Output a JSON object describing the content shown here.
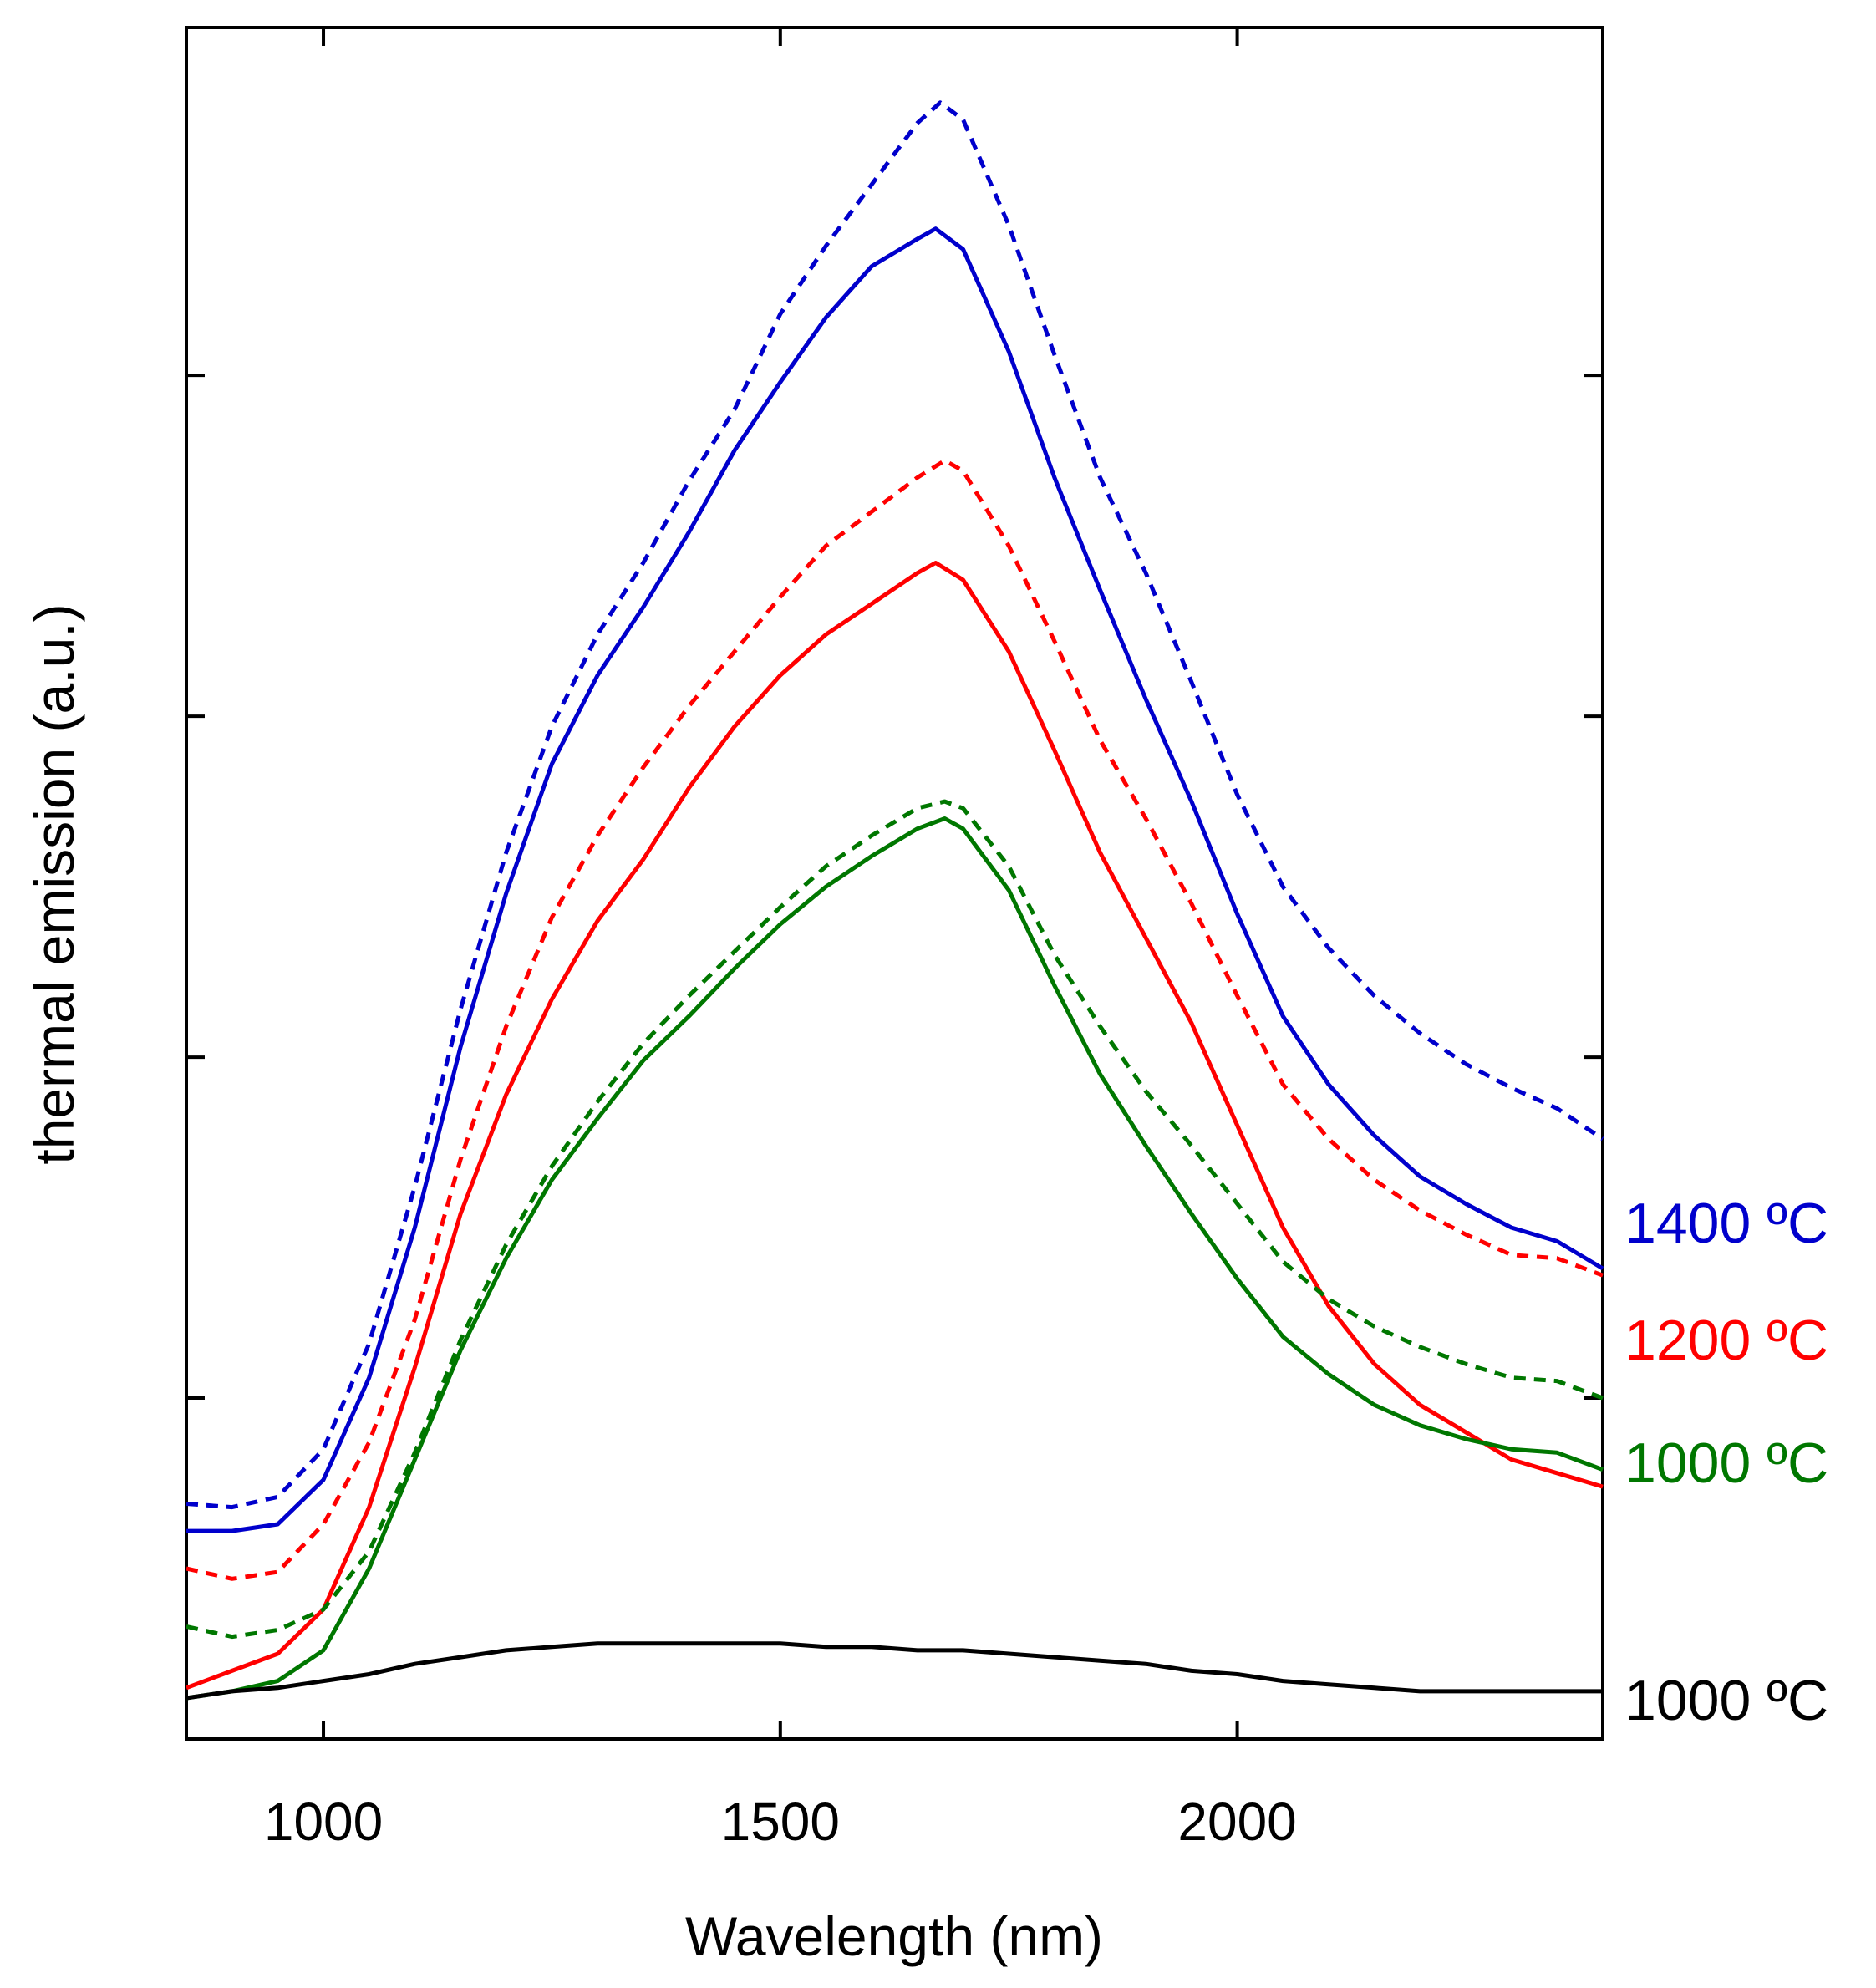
{
  "chart_data": {
    "type": "line",
    "title": "",
    "xlabel": "Wavelength (nm)",
    "ylabel": "thermal emission (a.u.)",
    "xlim": [
      850,
      2400
    ],
    "ylim": [
      -0.12,
      4.9
    ],
    "xticks": [
      1000,
      1500,
      2000
    ],
    "xtick_labels": [
      "1000",
      "1500",
      "2000"
    ],
    "yticks": [
      0.88,
      1.88,
      2.88,
      3.88
    ],
    "y_tick_labels_shown": false,
    "grid": false,
    "legend": "right-side labels",
    "series": [
      {
        "name": "1400 ºC dotted",
        "label": "",
        "color": "#0000cc",
        "dash": true,
        "x": [
          850,
          900,
          950,
          1000,
          1050,
          1100,
          1150,
          1200,
          1250,
          1300,
          1350,
          1400,
          1450,
          1500,
          1550,
          1600,
          1650,
          1675,
          1700,
          1750,
          1800,
          1850,
          1900,
          1950,
          2000,
          2050,
          2100,
          2150,
          2200,
          2250,
          2300,
          2350,
          2400
        ],
        "y": [
          0.57,
          0.56,
          0.59,
          0.73,
          1.04,
          1.5,
          2.02,
          2.48,
          2.85,
          3.12,
          3.33,
          3.57,
          3.78,
          4.06,
          4.26,
          4.44,
          4.62,
          4.68,
          4.63,
          4.32,
          3.94,
          3.58,
          3.3,
          2.98,
          2.65,
          2.38,
          2.2,
          2.06,
          1.95,
          1.86,
          1.79,
          1.73,
          1.64
        ]
      },
      {
        "name": "1400 ºC solid",
        "label": "1400 ºC",
        "color": "#0000cc",
        "dash": false,
        "x": [
          850,
          900,
          950,
          1000,
          1050,
          1100,
          1150,
          1200,
          1250,
          1300,
          1350,
          1400,
          1450,
          1500,
          1550,
          1600,
          1650,
          1670,
          1700,
          1750,
          1800,
          1850,
          1900,
          1950,
          2000,
          2050,
          2100,
          2150,
          2200,
          2250,
          2300,
          2350,
          2400
        ],
        "y": [
          0.49,
          0.49,
          0.51,
          0.64,
          0.94,
          1.38,
          1.91,
          2.36,
          2.74,
          3.0,
          3.2,
          3.42,
          3.66,
          3.86,
          4.05,
          4.2,
          4.28,
          4.31,
          4.25,
          3.95,
          3.58,
          3.25,
          2.93,
          2.63,
          2.3,
          2.0,
          1.8,
          1.65,
          1.53,
          1.45,
          1.38,
          1.34,
          1.26
        ]
      },
      {
        "name": "1200 ºC dotted",
        "label": "",
        "color": "#ff0000",
        "dash": true,
        "x": [
          850,
          900,
          950,
          1000,
          1050,
          1100,
          1150,
          1200,
          1250,
          1300,
          1350,
          1400,
          1450,
          1500,
          1550,
          1600,
          1650,
          1680,
          1700,
          1750,
          1800,
          1850,
          1900,
          1950,
          2000,
          2050,
          2100,
          2150,
          2200,
          2250,
          2300,
          2350,
          2400
        ],
        "y": [
          0.38,
          0.35,
          0.37,
          0.51,
          0.75,
          1.11,
          1.58,
          1.97,
          2.29,
          2.53,
          2.73,
          2.91,
          3.07,
          3.23,
          3.38,
          3.48,
          3.58,
          3.63,
          3.6,
          3.38,
          3.1,
          2.81,
          2.58,
          2.33,
          2.06,
          1.8,
          1.64,
          1.52,
          1.43,
          1.36,
          1.3,
          1.29,
          1.24
        ]
      },
      {
        "name": "1200 ºC solid",
        "label": "1200 ºC",
        "color": "#ff0000",
        "dash": false,
        "x": [
          850,
          900,
          950,
          1000,
          1050,
          1100,
          1150,
          1200,
          1250,
          1300,
          1350,
          1400,
          1450,
          1500,
          1550,
          1600,
          1650,
          1670,
          1700,
          1750,
          1800,
          1850,
          1900,
          1950,
          2000,
          2050,
          2100,
          2150,
          2200,
          2250,
          2300,
          2350,
          2400
        ],
        "y": [
          0.03,
          0.08,
          0.13,
          0.26,
          0.56,
          0.97,
          1.42,
          1.77,
          2.05,
          2.28,
          2.46,
          2.67,
          2.85,
          3.0,
          3.12,
          3.21,
          3.3,
          3.33,
          3.28,
          3.07,
          2.78,
          2.48,
          2.23,
          1.98,
          1.68,
          1.38,
          1.15,
          0.98,
          0.86,
          0.78,
          0.7,
          0.66,
          0.62
        ]
      },
      {
        "name": "1000 ºC dotted",
        "label": "",
        "color": "#007700",
        "dash": true,
        "x": [
          850,
          900,
          950,
          1000,
          1050,
          1100,
          1150,
          1200,
          1250,
          1300,
          1350,
          1400,
          1450,
          1500,
          1550,
          1600,
          1650,
          1680,
          1700,
          1750,
          1800,
          1850,
          1900,
          1950,
          2000,
          2050,
          2100,
          2150,
          2200,
          2250,
          2300,
          2350,
          2400
        ],
        "y": [
          0.21,
          0.18,
          0.2,
          0.26,
          0.43,
          0.72,
          1.05,
          1.33,
          1.56,
          1.75,
          1.92,
          2.06,
          2.19,
          2.32,
          2.44,
          2.53,
          2.61,
          2.63,
          2.61,
          2.44,
          2.18,
          1.97,
          1.78,
          1.62,
          1.45,
          1.28,
          1.17,
          1.09,
          1.03,
          0.98,
          0.94,
          0.93,
          0.88
        ]
      },
      {
        "name": "1000 ºC solid",
        "label": "1000 ºC",
        "color": "#007700",
        "dash": false,
        "x": [
          850,
          900,
          950,
          1000,
          1050,
          1100,
          1150,
          1200,
          1250,
          1300,
          1350,
          1400,
          1450,
          1500,
          1550,
          1600,
          1650,
          1680,
          1700,
          1750,
          1800,
          1850,
          1900,
          1950,
          2000,
          2050,
          2100,
          2150,
          2200,
          2250,
          2300,
          2350,
          2400
        ],
        "y": [
          0.0,
          0.02,
          0.05,
          0.14,
          0.38,
          0.7,
          1.02,
          1.29,
          1.52,
          1.7,
          1.87,
          2.0,
          2.14,
          2.27,
          2.38,
          2.47,
          2.55,
          2.58,
          2.55,
          2.37,
          2.09,
          1.83,
          1.62,
          1.42,
          1.23,
          1.06,
          0.95,
          0.86,
          0.8,
          0.76,
          0.73,
          0.72,
          0.67
        ]
      },
      {
        "name": "1000 ºC black",
        "label": "1000 ºC",
        "color": "#000000",
        "dash": false,
        "x": [
          850,
          900,
          950,
          1000,
          1050,
          1100,
          1150,
          1200,
          1250,
          1300,
          1350,
          1400,
          1450,
          1500,
          1550,
          1600,
          1650,
          1700,
          1750,
          1800,
          1850,
          1900,
          1950,
          2000,
          2050,
          2100,
          2150,
          2200,
          2250,
          2300,
          2350,
          2400
        ],
        "y": [
          0.0,
          0.02,
          0.03,
          0.05,
          0.07,
          0.1,
          0.12,
          0.14,
          0.15,
          0.16,
          0.16,
          0.16,
          0.16,
          0.16,
          0.15,
          0.15,
          0.14,
          0.14,
          0.13,
          0.12,
          0.11,
          0.1,
          0.08,
          0.07,
          0.05,
          0.04,
          0.03,
          0.02,
          0.02,
          0.02,
          0.02,
          0.02
        ]
      }
    ]
  }
}
